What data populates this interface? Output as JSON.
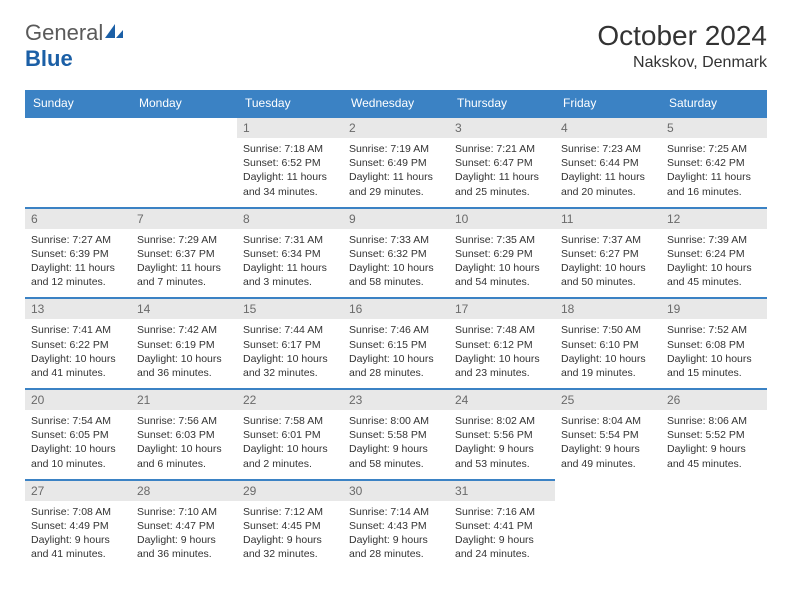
{
  "logo": {
    "text1": "General",
    "text2": "Blue"
  },
  "title": "October 2024",
  "location": "Nakskov, Denmark",
  "header_color": "#3b82c4",
  "row_border_color": "#3b82c4",
  "daynum_bg": "#e8e8e8",
  "day_headers": [
    "Sunday",
    "Monday",
    "Tuesday",
    "Wednesday",
    "Thursday",
    "Friday",
    "Saturday"
  ],
  "weeks": [
    [
      null,
      null,
      {
        "n": "1",
        "sr": "7:18 AM",
        "ss": "6:52 PM",
        "dl": "11 hours and 34 minutes."
      },
      {
        "n": "2",
        "sr": "7:19 AM",
        "ss": "6:49 PM",
        "dl": "11 hours and 29 minutes."
      },
      {
        "n": "3",
        "sr": "7:21 AM",
        "ss": "6:47 PM",
        "dl": "11 hours and 25 minutes."
      },
      {
        "n": "4",
        "sr": "7:23 AM",
        "ss": "6:44 PM",
        "dl": "11 hours and 20 minutes."
      },
      {
        "n": "5",
        "sr": "7:25 AM",
        "ss": "6:42 PM",
        "dl": "11 hours and 16 minutes."
      }
    ],
    [
      {
        "n": "6",
        "sr": "7:27 AM",
        "ss": "6:39 PM",
        "dl": "11 hours and 12 minutes."
      },
      {
        "n": "7",
        "sr": "7:29 AM",
        "ss": "6:37 PM",
        "dl": "11 hours and 7 minutes."
      },
      {
        "n": "8",
        "sr": "7:31 AM",
        "ss": "6:34 PM",
        "dl": "11 hours and 3 minutes."
      },
      {
        "n": "9",
        "sr": "7:33 AM",
        "ss": "6:32 PM",
        "dl": "10 hours and 58 minutes."
      },
      {
        "n": "10",
        "sr": "7:35 AM",
        "ss": "6:29 PM",
        "dl": "10 hours and 54 minutes."
      },
      {
        "n": "11",
        "sr": "7:37 AM",
        "ss": "6:27 PM",
        "dl": "10 hours and 50 minutes."
      },
      {
        "n": "12",
        "sr": "7:39 AM",
        "ss": "6:24 PM",
        "dl": "10 hours and 45 minutes."
      }
    ],
    [
      {
        "n": "13",
        "sr": "7:41 AM",
        "ss": "6:22 PM",
        "dl": "10 hours and 41 minutes."
      },
      {
        "n": "14",
        "sr": "7:42 AM",
        "ss": "6:19 PM",
        "dl": "10 hours and 36 minutes."
      },
      {
        "n": "15",
        "sr": "7:44 AM",
        "ss": "6:17 PM",
        "dl": "10 hours and 32 minutes."
      },
      {
        "n": "16",
        "sr": "7:46 AM",
        "ss": "6:15 PM",
        "dl": "10 hours and 28 minutes."
      },
      {
        "n": "17",
        "sr": "7:48 AM",
        "ss": "6:12 PM",
        "dl": "10 hours and 23 minutes."
      },
      {
        "n": "18",
        "sr": "7:50 AM",
        "ss": "6:10 PM",
        "dl": "10 hours and 19 minutes."
      },
      {
        "n": "19",
        "sr": "7:52 AM",
        "ss": "6:08 PM",
        "dl": "10 hours and 15 minutes."
      }
    ],
    [
      {
        "n": "20",
        "sr": "7:54 AM",
        "ss": "6:05 PM",
        "dl": "10 hours and 10 minutes."
      },
      {
        "n": "21",
        "sr": "7:56 AM",
        "ss": "6:03 PM",
        "dl": "10 hours and 6 minutes."
      },
      {
        "n": "22",
        "sr": "7:58 AM",
        "ss": "6:01 PM",
        "dl": "10 hours and 2 minutes."
      },
      {
        "n": "23",
        "sr": "8:00 AM",
        "ss": "5:58 PM",
        "dl": "9 hours and 58 minutes."
      },
      {
        "n": "24",
        "sr": "8:02 AM",
        "ss": "5:56 PM",
        "dl": "9 hours and 53 minutes."
      },
      {
        "n": "25",
        "sr": "8:04 AM",
        "ss": "5:54 PM",
        "dl": "9 hours and 49 minutes."
      },
      {
        "n": "26",
        "sr": "8:06 AM",
        "ss": "5:52 PM",
        "dl": "9 hours and 45 minutes."
      }
    ],
    [
      {
        "n": "27",
        "sr": "7:08 AM",
        "ss": "4:49 PM",
        "dl": "9 hours and 41 minutes."
      },
      {
        "n": "28",
        "sr": "7:10 AM",
        "ss": "4:47 PM",
        "dl": "9 hours and 36 minutes."
      },
      {
        "n": "29",
        "sr": "7:12 AM",
        "ss": "4:45 PM",
        "dl": "9 hours and 32 minutes."
      },
      {
        "n": "30",
        "sr": "7:14 AM",
        "ss": "4:43 PM",
        "dl": "9 hours and 28 minutes."
      },
      {
        "n": "31",
        "sr": "7:16 AM",
        "ss": "4:41 PM",
        "dl": "9 hours and 24 minutes."
      },
      null,
      null
    ]
  ],
  "labels": {
    "sunrise": "Sunrise:",
    "sunset": "Sunset:",
    "daylight": "Daylight:"
  }
}
